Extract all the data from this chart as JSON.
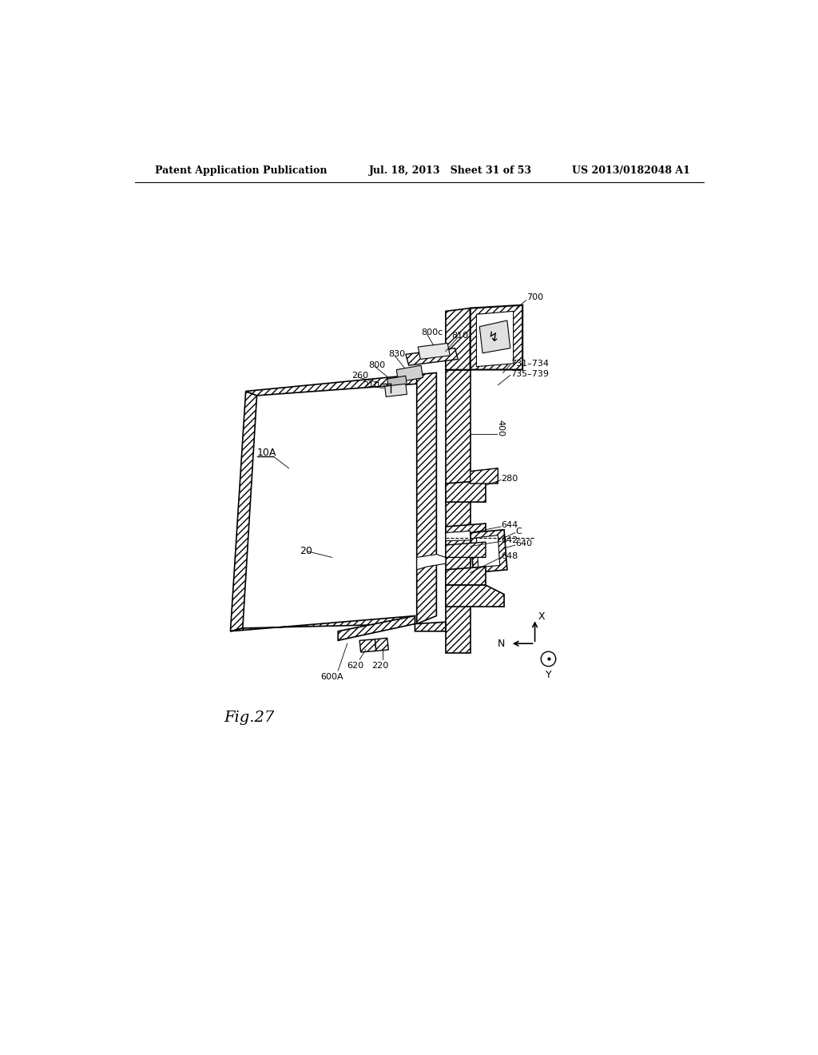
{
  "bg_color": "#ffffff",
  "header_left": "Patent Application Publication",
  "header_center": "Jul. 18, 2013   Sheet 31 of 53",
  "header_right": "US 2013/0182048 A1",
  "fig_label": "Fig.27"
}
